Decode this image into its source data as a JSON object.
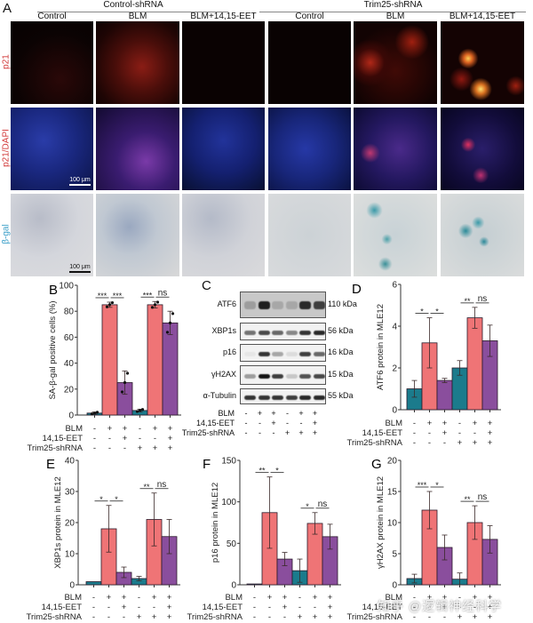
{
  "figure": {
    "panel_letters": [
      "A",
      "B",
      "C",
      "D",
      "E",
      "F",
      "G"
    ],
    "watermark": "知乎 @逻辑神经科学"
  },
  "panelA": {
    "groups": [
      {
        "title": "Control-shRNA",
        "columns": [
          "Control",
          "BLM",
          "BLM+14,15-EET"
        ]
      },
      {
        "title": "Trim25-shRNA",
        "columns": [
          "Control",
          "BLM",
          "BLM+14,15-EET"
        ]
      }
    ],
    "row_labels": [
      "p21",
      "p21/DAPI",
      "β-gal"
    ],
    "row_label_colors": [
      "#d23a3a",
      "#d23a3a",
      "#3a9ec8"
    ],
    "scale_bar": "100 μm"
  },
  "conditions": {
    "labels": [
      "BLM",
      "14,15-EET",
      "Trim25-shRNA"
    ],
    "rows": [
      [
        "-",
        "+",
        "+",
        "-",
        "+",
        "+"
      ],
      [
        "-",
        "-",
        "+",
        "-",
        "-",
        "+"
      ],
      [
        "-",
        "-",
        "-",
        "+",
        "+",
        "+"
      ]
    ]
  },
  "colors": {
    "teal": "#1b7b8c",
    "salmon": "#ef7476",
    "purple": "#8a4e9d"
  },
  "panelC": {
    "bands": [
      {
        "label": "ATF6",
        "kda": "110 kDa"
      },
      {
        "label": "XBP1s",
        "kda": "56 kDa"
      },
      {
        "label": "p16",
        "kda": "16 kDa"
      },
      {
        "label": "γH2AX",
        "kda": "15 kDa"
      },
      {
        "label": "α-Tubulin",
        "kda": "55 kDa"
      }
    ]
  },
  "chart_data": [
    {
      "panel": "B",
      "type": "bar",
      "ylabel": "SA-β-gal positive cells (%)",
      "ylim": [
        0,
        100
      ],
      "yticks": [
        0,
        20,
        40,
        60,
        80,
        100
      ],
      "categories": [
        "Ctrl",
        "BLM",
        "BLM+EET",
        "Trim25-shRNA",
        "Trim25-shRNA+BLM",
        "Trim25-shRNA+BLM+EET"
      ],
      "values": [
        1.5,
        85,
        25,
        3.5,
        85,
        71
      ],
      "errors": [
        0.8,
        2,
        9,
        1,
        2.5,
        9
      ],
      "bar_colors": [
        "teal",
        "salmon",
        "purple",
        "teal",
        "salmon",
        "purple"
      ],
      "significance": [
        {
          "from": 0,
          "to": 1,
          "label": "***"
        },
        {
          "from": 1,
          "to": 2,
          "label": "***"
        },
        {
          "from": 3,
          "to": 4,
          "label": "***"
        },
        {
          "from": 4,
          "to": 5,
          "label": "ns"
        }
      ]
    },
    {
      "panel": "D",
      "type": "bar",
      "ylabel": "ATF6 protein in MLE12",
      "ylim": [
        0,
        6
      ],
      "yticks": [
        0,
        2,
        4,
        6
      ],
      "categories": [
        "Ctrl",
        "BLM",
        "BLM+EET",
        "Trim25-shRNA",
        "Trim25-shRNA+BLM",
        "Trim25-shRNA+BLM+EET"
      ],
      "values": [
        1.0,
        3.2,
        1.4,
        2.0,
        4.4,
        3.3
      ],
      "errors": [
        0.4,
        1.2,
        0.1,
        0.35,
        0.5,
        0.75
      ],
      "bar_colors": [
        "teal",
        "salmon",
        "purple",
        "teal",
        "salmon",
        "purple"
      ],
      "significance": [
        {
          "from": 0,
          "to": 1,
          "label": "*"
        },
        {
          "from": 1,
          "to": 2,
          "label": "*"
        },
        {
          "from": 3,
          "to": 4,
          "label": "**"
        },
        {
          "from": 4,
          "to": 5,
          "label": "ns"
        }
      ]
    },
    {
      "panel": "E",
      "type": "bar",
      "ylabel": "XBP1s protein in MLE12",
      "ylim": [
        0,
        40
      ],
      "yticks": [
        0,
        10,
        20,
        30,
        40
      ],
      "categories": [
        "Ctrl",
        "BLM",
        "BLM+EET",
        "Trim25-shRNA",
        "Trim25-shRNA+BLM",
        "Trim25-shRNA+BLM+EET"
      ],
      "values": [
        1.0,
        18,
        4,
        2,
        21,
        15.5
      ],
      "errors": [
        0,
        7.5,
        1.7,
        0.7,
        8.5,
        5.5
      ],
      "bar_colors": [
        "teal",
        "salmon",
        "purple",
        "teal",
        "salmon",
        "purple"
      ],
      "significance": [
        {
          "from": 0,
          "to": 1,
          "label": "*"
        },
        {
          "from": 1,
          "to": 2,
          "label": "*"
        },
        {
          "from": 3,
          "to": 4,
          "label": "**"
        },
        {
          "from": 4,
          "to": 5,
          "label": "ns"
        }
      ]
    },
    {
      "panel": "F",
      "type": "bar",
      "ylabel": "p16 protein in MLE12",
      "ylim": [
        0,
        150
      ],
      "yticks": [
        0,
        50,
        100,
        150
      ],
      "categories": [
        "Ctrl",
        "BLM",
        "BLM+EET",
        "Trim25-shRNA",
        "Trim25-shRNA+BLM",
        "Trim25-shRNA+BLM+EET"
      ],
      "values": [
        1,
        87,
        31,
        17,
        74,
        58
      ],
      "errors": [
        0,
        43,
        8,
        14,
        13,
        15
      ],
      "bar_colors": [
        "teal",
        "salmon",
        "purple",
        "teal",
        "salmon",
        "purple"
      ],
      "significance": [
        {
          "from": 0,
          "to": 1,
          "label": "**"
        },
        {
          "from": 1,
          "to": 2,
          "label": "*"
        },
        {
          "from": 3,
          "to": 4,
          "label": "*"
        },
        {
          "from": 4,
          "to": 5,
          "label": "ns"
        }
      ]
    },
    {
      "panel": "G",
      "type": "bar",
      "ylabel": "γH2AX protein in MLE12",
      "ylim": [
        0,
        20
      ],
      "yticks": [
        0,
        5,
        10,
        15,
        20
      ],
      "categories": [
        "Ctrl",
        "BLM",
        "BLM+EET",
        "Trim25-shRNA",
        "Trim25-shRNA+BLM",
        "Trim25-shRNA+BLM+EET"
      ],
      "values": [
        1.0,
        12,
        6,
        0.9,
        10,
        7.3
      ],
      "errors": [
        0.7,
        3,
        2,
        1,
        2.7,
        2.2
      ],
      "bar_colors": [
        "teal",
        "salmon",
        "purple",
        "teal",
        "salmon",
        "purple"
      ],
      "significance": [
        {
          "from": 0,
          "to": 1,
          "label": "***"
        },
        {
          "from": 1,
          "to": 2,
          "label": "*"
        },
        {
          "from": 3,
          "to": 4,
          "label": "**"
        },
        {
          "from": 4,
          "to": 5,
          "label": "ns"
        }
      ]
    }
  ]
}
